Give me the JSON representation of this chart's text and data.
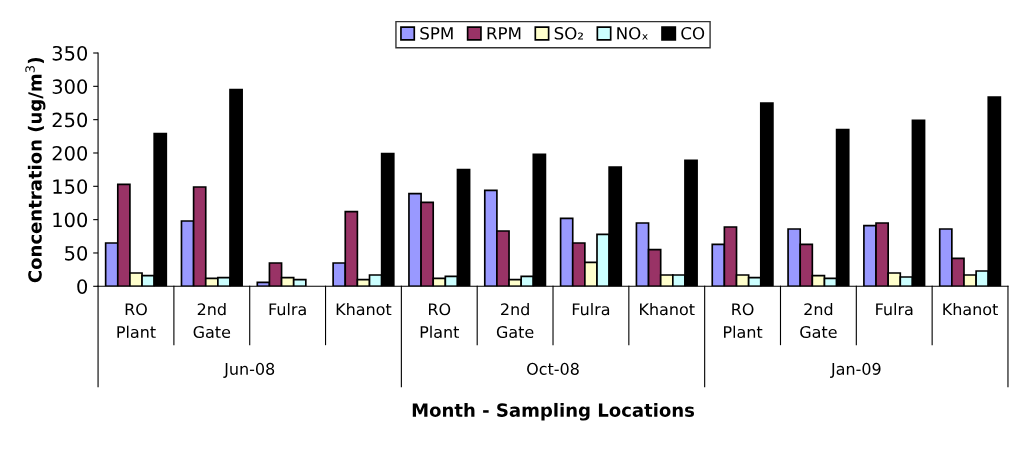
{
  "chart_data": {
    "type": "bar",
    "xlabel": "Month - Sampling Locations",
    "ylabel": "Concentration (ug/m$^{3}$)",
    "categories": [
      "RO\nPlant",
      "2nd\nGate",
      "Fulra",
      "Khanot",
      "RO\nPlant",
      "2nd\nGate",
      "Fulra",
      "Khanot",
      "RO\nPlant",
      "2nd\nGate",
      "Fulra",
      "Khanot"
    ],
    "annotations": [
      "Jun-08",
      "Oct-08",
      "Jan-09"
    ],
    "series": [
      {
        "name": "SPM",
        "color": "#9999ff",
        "values": [
          65,
          98,
          6,
          35,
          139,
          144,
          102,
          95,
          63,
          86,
          91,
          86
        ]
      },
      {
        "name": "RPM",
        "color": "#993366",
        "values": [
          153,
          149,
          35,
          112,
          126,
          83,
          65,
          55,
          89,
          63,
          95,
          42
        ]
      },
      {
        "name": "SO₂",
        "color": "#ffffcc",
        "values": [
          20,
          12,
          13,
          10,
          12,
          10,
          36,
          17,
          17,
          16,
          20,
          17
        ]
      },
      {
        "name": "NOₓ",
        "color": "#ccffff",
        "values": [
          16,
          13,
          10,
          17,
          15,
          15,
          78,
          17,
          13,
          12,
          14,
          23
        ]
      },
      {
        "name": "CO",
        "color": "#000000",
        "values": [
          229,
          295,
          null,
          199,
          175,
          198,
          179,
          189,
          275,
          235,
          249,
          284
        ]
      }
    ],
    "ylim": [
      0,
      350
    ],
    "yticks": [
      0,
      50,
      100,
      150,
      200,
      250,
      300,
      350
    ],
    "legend": "top",
    "grid": false
  }
}
